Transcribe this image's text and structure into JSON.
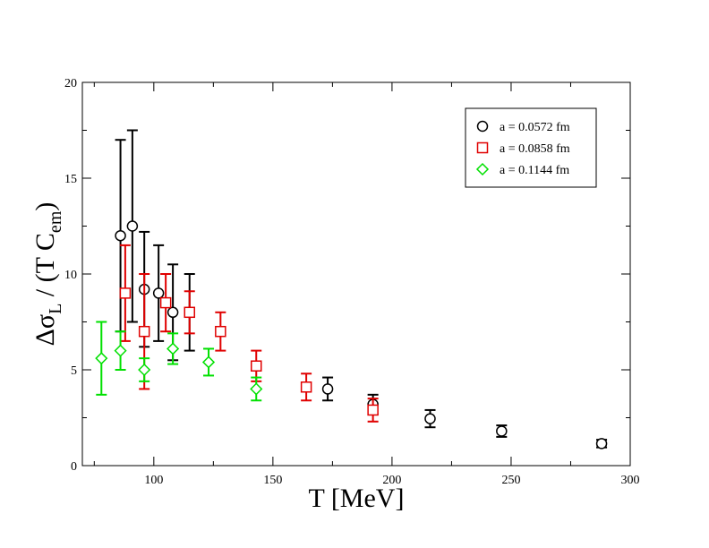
{
  "chart_data": {
    "type": "scatter",
    "xlabel": "T [MeV]",
    "ylabel": "Δσ_L / (T C_em)",
    "ylabel_parts": {
      "delta_sigma": "Δσ",
      "sub_L": "L",
      "middle": " / (T C",
      "sub_em": "em",
      "end": ")"
    },
    "xlim": [
      70,
      300
    ],
    "ylim": [
      0,
      20
    ],
    "x_ticks": [
      100,
      150,
      200,
      250,
      300
    ],
    "y_ticks": [
      0,
      5,
      10,
      15,
      20
    ],
    "legend_position": "top-right",
    "grid": false,
    "series": [
      {
        "name": "a = 0.0572 fm",
        "marker": "circle",
        "color": "#000000",
        "points": [
          {
            "x": 86,
            "y": 12.0,
            "lo": 7.0,
            "hi": 17.0
          },
          {
            "x": 91,
            "y": 12.5,
            "lo": 7.5,
            "hi": 17.5
          },
          {
            "x": 96,
            "y": 9.2,
            "lo": 6.2,
            "hi": 12.2
          },
          {
            "x": 102,
            "y": 9.0,
            "lo": 6.5,
            "hi": 11.5
          },
          {
            "x": 108,
            "y": 8.0,
            "lo": 5.5,
            "hi": 10.5
          },
          {
            "x": 115,
            "y": 8.0,
            "lo": 6.0,
            "hi": 10.0
          },
          {
            "x": 173,
            "y": 4.0,
            "lo": 3.4,
            "hi": 4.6
          },
          {
            "x": 192,
            "y": 3.2,
            "lo": 2.7,
            "hi": 3.7
          },
          {
            "x": 216,
            "y": 2.45,
            "lo": 2.0,
            "hi": 2.9
          },
          {
            "x": 246,
            "y": 1.8,
            "lo": 1.5,
            "hi": 2.1
          },
          {
            "x": 288,
            "y": 1.15,
            "lo": 0.95,
            "hi": 1.35
          }
        ]
      },
      {
        "name": "a = 0.0858 fm",
        "marker": "square",
        "color": "#e00000",
        "points": [
          {
            "x": 88,
            "y": 9.0,
            "lo": 6.5,
            "hi": 11.5
          },
          {
            "x": 96,
            "y": 7.0,
            "lo": 4.0,
            "hi": 10.0
          },
          {
            "x": 105,
            "y": 8.5,
            "lo": 7.0,
            "hi": 10.0
          },
          {
            "x": 115,
            "y": 8.0,
            "lo": 6.9,
            "hi": 9.1
          },
          {
            "x": 128,
            "y": 7.0,
            "lo": 6.0,
            "hi": 8.0
          },
          {
            "x": 143,
            "y": 5.2,
            "lo": 4.4,
            "hi": 6.0
          },
          {
            "x": 164,
            "y": 4.1,
            "lo": 3.4,
            "hi": 4.8
          },
          {
            "x": 192,
            "y": 2.9,
            "lo": 2.3,
            "hi": 3.5
          }
        ]
      },
      {
        "name": "a = 0.1144 fm",
        "marker": "diamond",
        "color": "#00e000",
        "points": [
          {
            "x": 78,
            "y": 5.6,
            "lo": 3.7,
            "hi": 7.5
          },
          {
            "x": 86,
            "y": 6.0,
            "lo": 5.0,
            "hi": 7.0
          },
          {
            "x": 96,
            "y": 5.0,
            "lo": 4.4,
            "hi": 5.6
          },
          {
            "x": 108,
            "y": 6.1,
            "lo": 5.3,
            "hi": 6.9
          },
          {
            "x": 123,
            "y": 5.4,
            "lo": 4.7,
            "hi": 6.1
          },
          {
            "x": 143,
            "y": 4.0,
            "lo": 3.4,
            "hi": 4.6
          }
        ]
      }
    ]
  }
}
